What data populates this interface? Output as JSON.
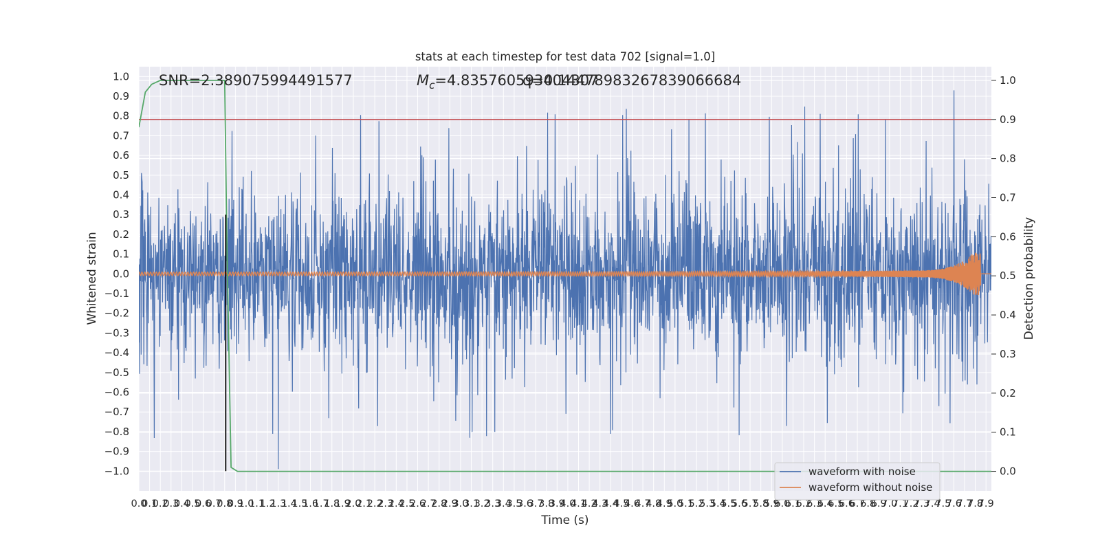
{
  "chart_data": {
    "type": "line",
    "title": "stats at each timestep for test data 702 [signal=1.0]",
    "xlabel": "Time (s)",
    "ylabel": "Whitened strain",
    "ylabel_right": "Detection probability",
    "xlim": [
      0.0,
      7.95
    ],
    "ylim": [
      -1.1,
      1.05
    ],
    "ylim_right": [
      -0.05,
      1.035
    ],
    "x_ticks": [
      0.0,
      0.1,
      0.2,
      0.3,
      0.4,
      0.5,
      0.6,
      0.7,
      0.8,
      0.9,
      1.0,
      1.1,
      1.2,
      1.3,
      1.4,
      1.5,
      1.6,
      1.7,
      1.8,
      1.9,
      2.0,
      2.1,
      2.2,
      2.3,
      2.4,
      2.5,
      2.6,
      2.7,
      2.8,
      2.9,
      3.0,
      3.1,
      3.2,
      3.3,
      3.4,
      3.5,
      3.6,
      3.7,
      3.8,
      3.9,
      4.0,
      4.1,
      4.2,
      4.3,
      4.4,
      4.5,
      4.6,
      4.7,
      4.8,
      4.9,
      5.0,
      5.1,
      5.2,
      5.3,
      5.4,
      5.5,
      5.6,
      5.7,
      5.8,
      5.9,
      6.0,
      6.1,
      6.2,
      6.3,
      6.4,
      6.5,
      6.6,
      6.7,
      6.8,
      6.9,
      7.0,
      7.1,
      7.2,
      7.3,
      7.4,
      7.5,
      7.6,
      7.7,
      7.8,
      7.9
    ],
    "x_tick_labels": [
      "0.0",
      "0.1",
      "0.2",
      "0.3",
      "0.4",
      "0.5",
      "0.6",
      "0.7",
      "0.8",
      "0.9",
      "1.0",
      "1.1",
      "1.2",
      "1.3",
      "1.4",
      "1.5",
      "1.6",
      "1.7",
      "1.8",
      "1.9",
      "2.0",
      "2.1",
      "2.2",
      "2.3",
      "2.4",
      "2.5",
      "2.6",
      "2.7",
      "2.8",
      "2.9",
      "3.0",
      "3.1",
      "3.2",
      "3.3",
      "3.4",
      "3.5",
      "3.6",
      "3.7",
      "3.8",
      "3.9",
      "4.0",
      "4.1",
      "4.2",
      "4.3",
      "4.4",
      "4.5",
      "4.6",
      "4.7",
      "4.8",
      "4.9",
      "5.0",
      "5.1",
      "5.2",
      "5.3",
      "5.4",
      "5.5",
      "5.6",
      "5.7",
      "5.8",
      "5.9",
      "6.0",
      "6.1",
      "6.2",
      "6.3",
      "6.4",
      "6.5",
      "6.6",
      "6.7",
      "6.8",
      "6.9",
      "7.0",
      "7.1",
      "7.2",
      "7.3",
      "7.4",
      "7.5",
      "7.6",
      "7.7",
      "7.8",
      "7.9"
    ],
    "y_ticks": [
      1.0,
      0.9,
      0.8,
      0.7,
      0.6,
      0.5,
      0.4,
      0.3,
      0.2,
      0.1,
      0.0,
      -0.1,
      -0.2,
      -0.3,
      -0.4,
      -0.5,
      -0.6,
      -0.7,
      -0.8,
      -0.9,
      -1.0
    ],
    "y_tick_labels": [
      "1.0",
      "0.9",
      "0.8",
      "0.7",
      "0.6",
      "0.5",
      "0.4",
      "0.3",
      "0.2",
      "0.1",
      "0.0",
      "−0.1",
      "−0.2",
      "−0.3",
      "−0.4",
      "−0.5",
      "−0.6",
      "−0.7",
      "−0.8",
      "−0.9",
      "−1.0"
    ],
    "y_right_ticks": [
      1.0,
      0.9,
      0.8,
      0.7,
      0.6,
      0.5,
      0.4,
      0.3,
      0.2,
      0.1,
      0.0
    ],
    "y_right_tick_labels": [
      "1.0",
      "0.9",
      "0.8",
      "0.7",
      "0.6",
      "0.5",
      "0.4",
      "0.3",
      "0.2",
      "0.1",
      "0.0"
    ],
    "grid": true,
    "legend_position": "bottom-right",
    "series": [
      {
        "name": "waveform with noise",
        "axis": "left",
        "color": "#4c72b0",
        "noise_envelope": {
          "typical_amplitude": 0.45,
          "peak_max": 0.93,
          "peak_min": -0.99,
          "peak_max_time": 7.6,
          "peak_min_time": 1.3
        }
      },
      {
        "name": "waveform without noise",
        "axis": "left",
        "color": "#dd8452",
        "chirp": {
          "start_amplitude": 0.01,
          "peak_amplitude": 0.11,
          "merger_time": 7.85
        }
      },
      {
        "name": "",
        "axis": "right",
        "color": "#55a868",
        "x": [
          0.0,
          0.06,
          0.12,
          0.2,
          0.5,
          0.8,
          0.82,
          0.86,
          0.92,
          1.0,
          2.0,
          4.0,
          6.0,
          7.95
        ],
        "values": [
          0.88,
          0.97,
          0.99,
          1.0,
          1.0,
          1.0,
          0.6,
          0.01,
          0.0,
          0.0,
          0.0,
          0.0,
          0.0,
          0.0
        ]
      }
    ],
    "threshold_line": {
      "axis": "right",
      "value": 0.9,
      "color": "#c44e52"
    },
    "vertical_line": {
      "x": 0.81,
      "y_from": -1.0,
      "y_to": 0.3,
      "color": "#000000"
    },
    "annotations": {
      "snr": "SNR=2.389075994491577",
      "mc_symbol": "M",
      "mc_subscript": "c",
      "mc_value": "=4.835760593404307",
      "q_value": "q=0.14478983267839066684"
    }
  }
}
